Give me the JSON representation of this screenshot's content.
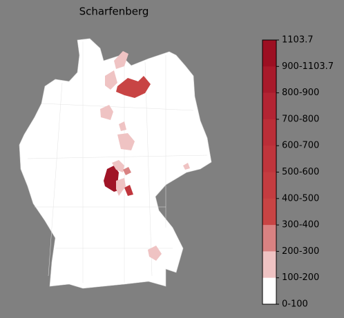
{
  "title": "Scharfenberg",
  "colorbar": {
    "labels": [
      "1103.7",
      "900-1103.7",
      "800-900",
      "700-800",
      "600-700",
      "500-600",
      "400-500",
      "300-400",
      "200-300",
      "100-200",
      "0-100"
    ],
    "colors": [
      "#9c0f22",
      "#a81a2b",
      "#b32433",
      "#bb2e38",
      "#c0353c",
      "#c43c40",
      "#c84444",
      "#d98282",
      "#efc3c3",
      "#ffffff"
    ]
  }
}
